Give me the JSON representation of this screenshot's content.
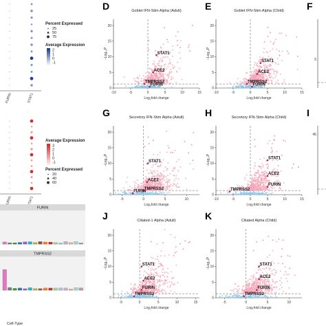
{
  "panels": [
    {
      "letter": "D",
      "title": "Goblet IFN-Stim Alpha (Adult)",
      "xticks": [
        "-10",
        "-5",
        "0",
        "5",
        "10",
        "15"
      ],
      "yticks": [
        "0",
        "5",
        "10",
        "15",
        "20"
      ],
      "xlabel": "Log₂fold change",
      "ylabel": "−Log₁₀P",
      "genes": [
        "STAT1",
        "ACE2",
        "TMPRSS2",
        "FURIN"
      ]
    },
    {
      "letter": "E",
      "title": "Goblet IFN-Stim Alpha (Child)",
      "xticks": [
        "-10",
        "-5",
        "0",
        "5",
        "10",
        "15"
      ],
      "yticks": [
        "0",
        "5",
        "10",
        "15",
        "20"
      ],
      "xlabel": "Log₂fold change",
      "ylabel": "−Log₁₀P",
      "genes": [
        "STAT1",
        "ACE2",
        "TMPRSS2",
        "FURIN"
      ]
    },
    {
      "letter": "G",
      "title": "Secretory IFN-Stim Alpha (Adult)",
      "xticks": [
        "-5",
        "0",
        "5",
        "10"
      ],
      "yticks": [
        "0",
        "5",
        "10",
        "15",
        "20"
      ],
      "xlabel": "Log₂fold change",
      "ylabel": "−Log₁₀P",
      "genes": [
        "STAT1",
        "ACE2",
        "TMPRSS2",
        "FURIN"
      ]
    },
    {
      "letter": "H",
      "title": "Secretory IFN-Stim Alpha (Child)",
      "xticks": [
        "-10",
        "-5",
        "0",
        "5",
        "10",
        "15"
      ],
      "yticks": [
        "0",
        "5",
        "10",
        "15",
        "20"
      ],
      "xlabel": "Log₂fold change",
      "ylabel": "−Log₁₀P",
      "genes": [
        "STAT1",
        "ACE2",
        "FURIN",
        "TMPRSS2"
      ]
    },
    {
      "letter": "J",
      "title": "Ciliated-1 Alpha (Adult)",
      "xticks": [
        "-5",
        "0",
        "5",
        "10",
        "15"
      ],
      "yticks": [
        "0",
        "5",
        "10",
        "15",
        "20"
      ],
      "xlabel": "Log₂fold change",
      "ylabel": "−Log₁₀P",
      "genes": [
        "STAT1",
        "ACE2",
        "FURIN",
        "TMPRSS2"
      ]
    },
    {
      "letter": "K",
      "title": "Ciliated Alpha (Child)",
      "xticks": [
        "-5",
        "0",
        "5",
        "10"
      ],
      "yticks": [
        "0",
        "5",
        "10",
        "15",
        "20"
      ],
      "xlabel": "Log₂fold change",
      "ylabel": "−Log₁₀P",
      "genes": [
        "STAT1",
        "ACE2",
        "FURIN",
        "TMPRSS2"
      ]
    }
  ],
  "right_cut_panels": [
    {
      "letter": "F",
      "ytick": "5"
    },
    {
      "letter": "I",
      "ytick": "45"
    }
  ],
  "dotplot_top": {
    "genes": [
      "FURIN",
      "STAT1"
    ],
    "legend_pct_title": "Percent Expressed",
    "legend_pct_values": [
      "25",
      "50",
      "75"
    ],
    "legend_avg_title": "Average Expression",
    "legend_avg_values": [
      "2",
      "1",
      "0",
      "-1"
    ]
  },
  "dotplot_mid": {
    "genes": [
      "FURIN",
      "STAT1"
    ],
    "legend_avg_title": "Average Expression",
    "legend_avg_values": [
      "3",
      "2",
      "1",
      "0",
      "-1"
    ],
    "legend_pct_title": "Percent Expressed",
    "legend_pct_values": [
      "20",
      "40",
      "60"
    ]
  },
  "bar_strips": [
    "FURIN",
    "TMPRSS2"
  ],
  "bar_xlabel": "Cell-Type",
  "colors": {
    "points": "#f4a7b9",
    "points_dark": "#e88aa3",
    "ns": "#8ec7e8",
    "grid": "#dddddd"
  },
  "chart_data": [
    {
      "type": "scatter",
      "panel": "D",
      "xlim": [
        -10,
        15
      ],
      "ylim": [
        0,
        22
      ],
      "genes": [
        {
          "name": "STAT1",
          "x": 2.5,
          "y": 10.5
        },
        {
          "name": "ACE2",
          "x": 1.5,
          "y": 5
        },
        {
          "name": "TMPRSS2",
          "x": -1,
          "y": 1.3
        },
        {
          "name": "FURIN",
          "x": 0.5,
          "y": 0.4
        }
      ]
    },
    {
      "type": "scatter",
      "panel": "E",
      "xlim": [
        -10,
        15
      ],
      "ylim": [
        0,
        22
      ],
      "genes": [
        {
          "name": "STAT1",
          "x": 3,
          "y": 8
        },
        {
          "name": "ACE2",
          "x": 2,
          "y": 4.5
        },
        {
          "name": "TMPRSS2",
          "x": -1,
          "y": 1.3
        },
        {
          "name": "FURIN",
          "x": 0.5,
          "y": 0.4
        }
      ]
    },
    {
      "type": "scatter",
      "panel": "G",
      "xlim": [
        -7,
        13
      ],
      "ylim": [
        0,
        22
      ],
      "genes": [
        {
          "name": "STAT1",
          "x": 1,
          "y": 10
        },
        {
          "name": "ACE2",
          "x": 0.8,
          "y": 4
        },
        {
          "name": "TMPRSS2",
          "x": 0,
          "y": 1.2
        },
        {
          "name": "FURIN",
          "x": -2.5,
          "y": 0.4
        }
      ]
    },
    {
      "type": "scatter",
      "panel": "H",
      "xlim": [
        -10,
        15
      ],
      "ylim": [
        0,
        22
      ],
      "genes": [
        {
          "name": "STAT1",
          "x": 5,
          "y": 11
        },
        {
          "name": "ACE2",
          "x": 5,
          "y": 6
        },
        {
          "name": "FURIN",
          "x": 5,
          "y": 2.5
        },
        {
          "name": "TMPRSS2",
          "x": -6,
          "y": 1
        }
      ]
    },
    {
      "type": "scatter",
      "panel": "J",
      "xlim": [
        -7,
        16
      ],
      "ylim": [
        0,
        22
      ],
      "genes": [
        {
          "name": "STAT1",
          "x": 0.5,
          "y": 10
        },
        {
          "name": "ACE2",
          "x": 1,
          "y": 5.5
        },
        {
          "name": "FURIN",
          "x": 0.5,
          "y": 2.5
        },
        {
          "name": "TMPRSS2",
          "x": -1.5,
          "y": 0.5
        }
      ]
    },
    {
      "type": "scatter",
      "panel": "K",
      "xlim": [
        -7,
        13
      ],
      "ylim": [
        0,
        22
      ],
      "genes": [
        {
          "name": "STAT1",
          "x": 3,
          "y": 10
        },
        {
          "name": "ACE2",
          "x": 3,
          "y": 6
        },
        {
          "name": "FURIN",
          "x": 2.5,
          "y": 2.5
        },
        {
          "name": "TMPRSS2",
          "x": -0.5,
          "y": 0.5
        }
      ]
    }
  ]
}
